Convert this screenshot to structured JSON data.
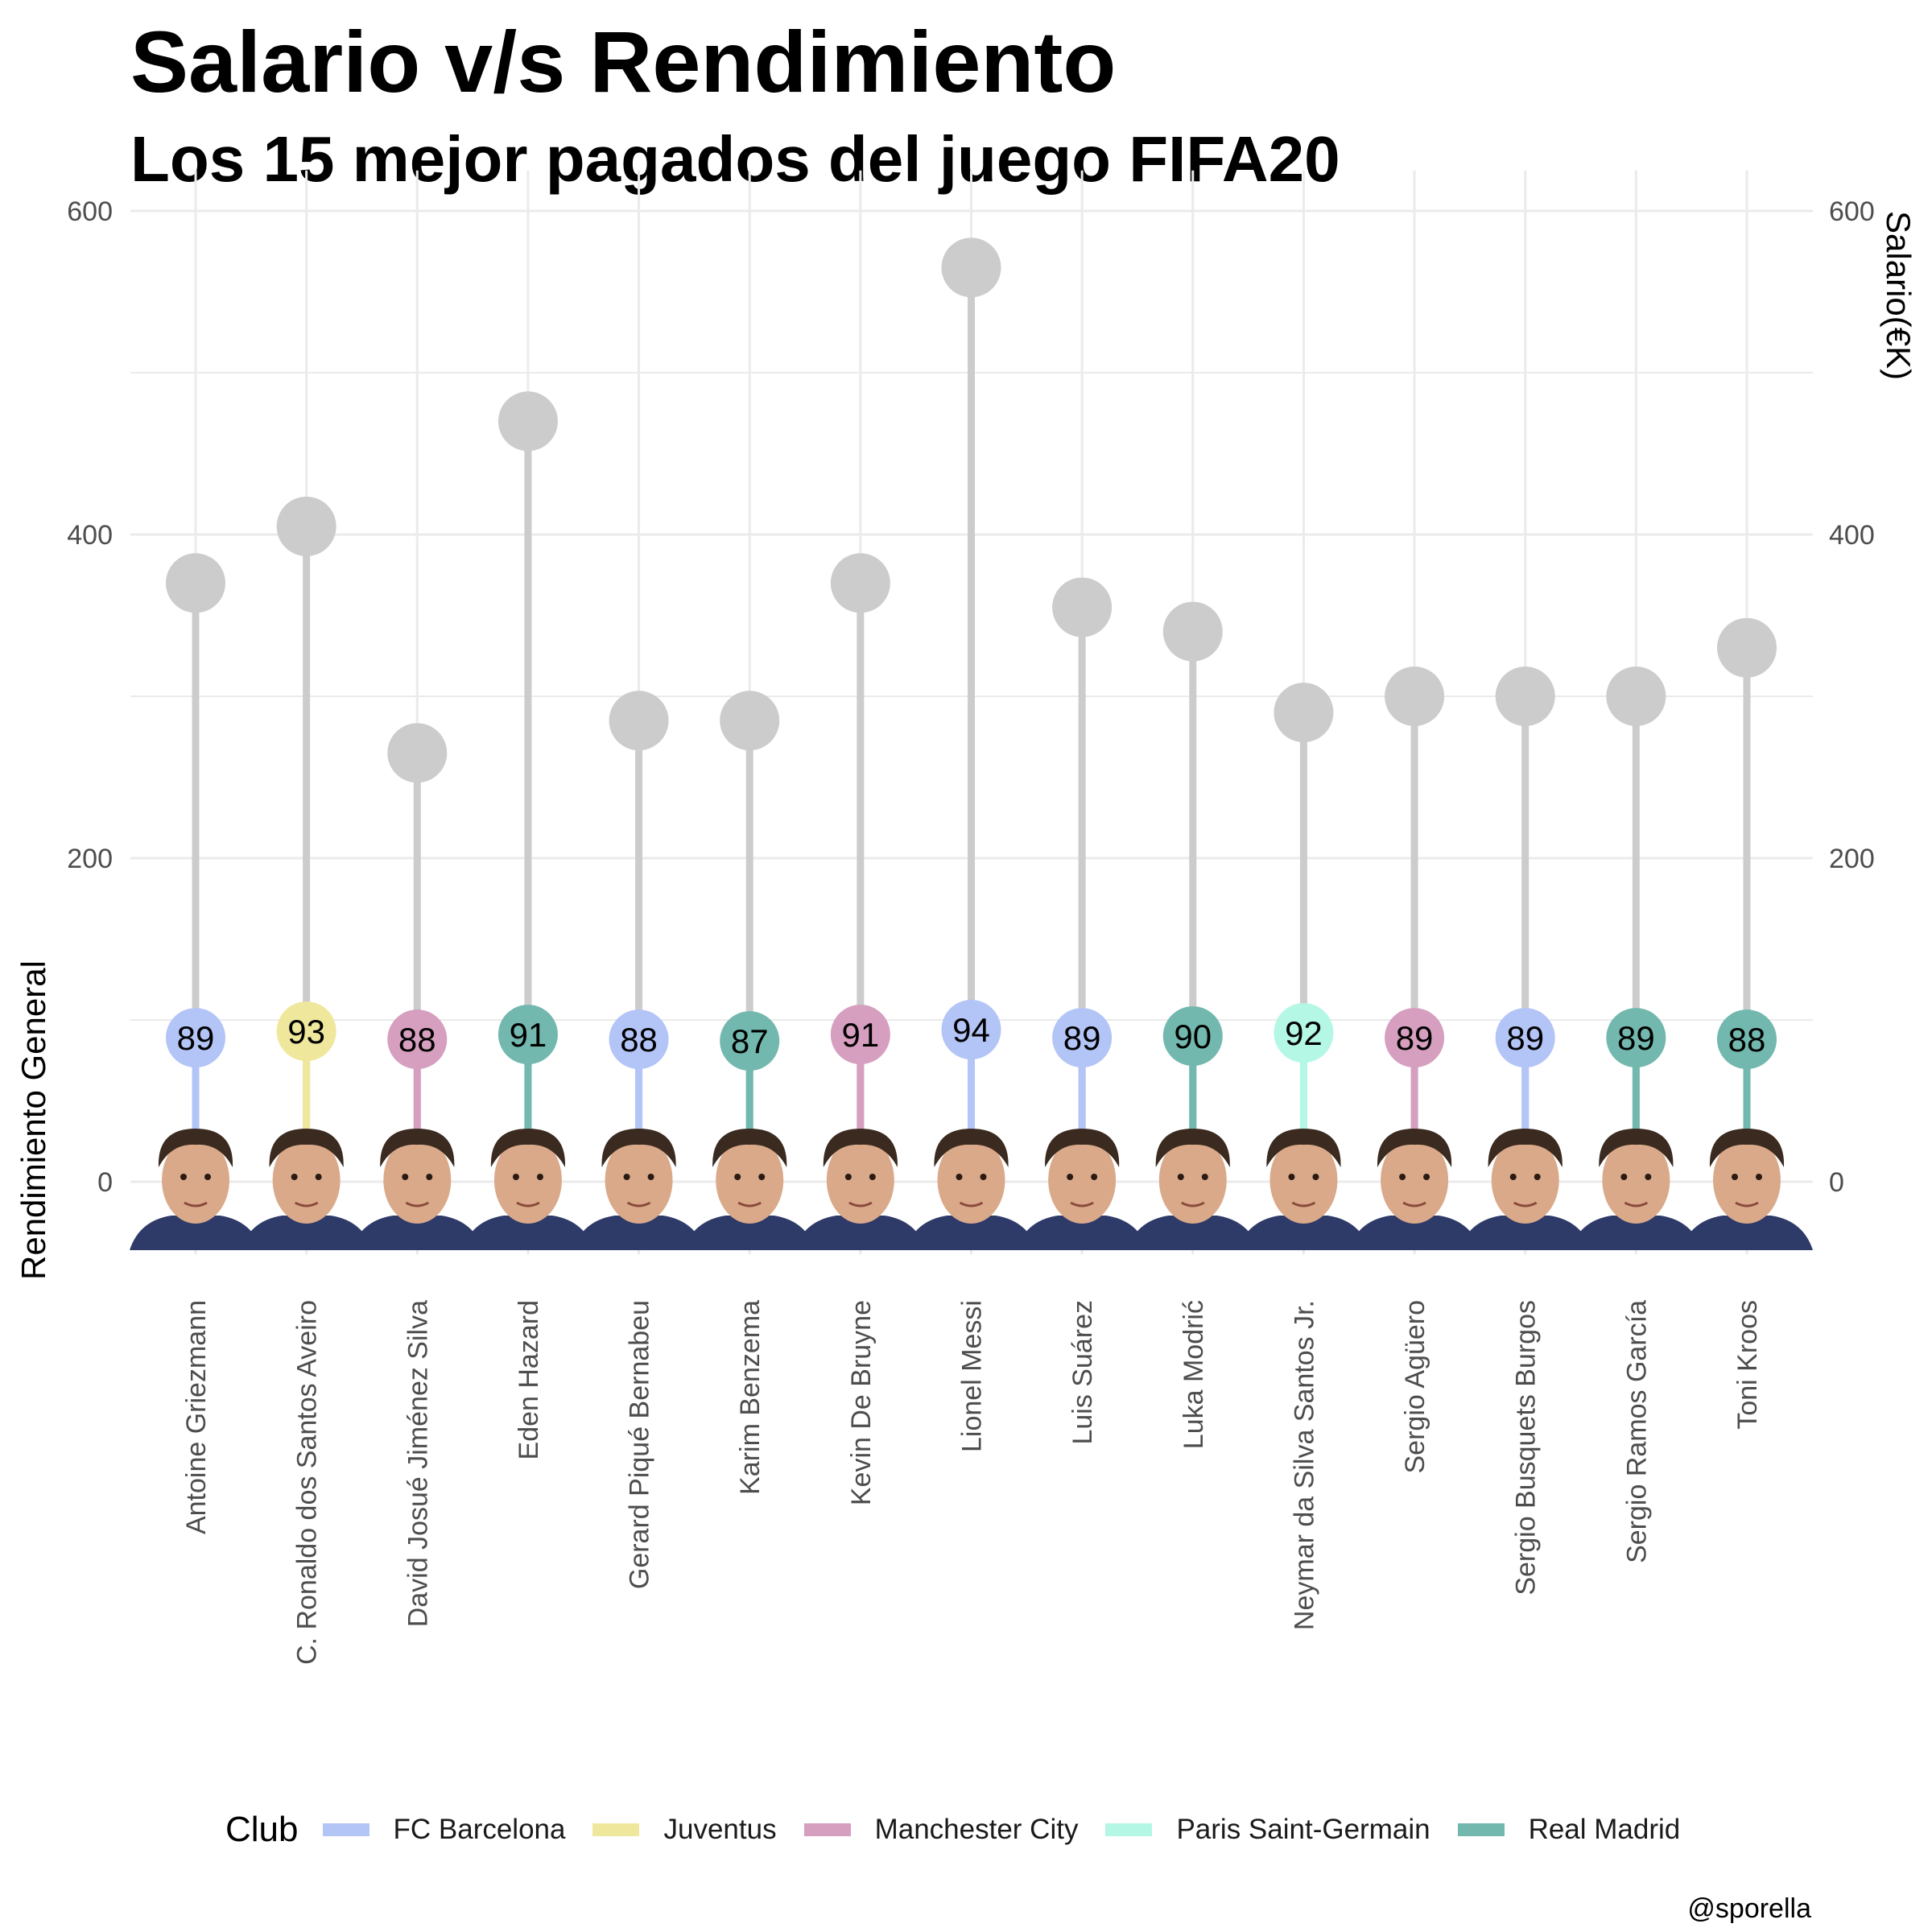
{
  "chart_data": {
    "type": "lollipop",
    "title": "Salario v/s Rendimiento",
    "subtitle": "Los 15 mejor pagados del juego FIFA20",
    "ylabel_left": "Rendimiento General",
    "ylabel_right": "Salario(€K)",
    "ylim": [
      -45,
      625
    ],
    "yticks": [
      0,
      200,
      400,
      600
    ],
    "grid": true,
    "legend": {
      "title": "Club",
      "position": "bottom",
      "items": [
        {
          "name": "FC Barcelona",
          "color": "#b3c4f7"
        },
        {
          "name": "Juventus",
          "color": "#efe89c"
        },
        {
          "name": "Manchester City",
          "color": "#d69ebf"
        },
        {
          "name": "Paris Saint-Germain",
          "color": "#b3f7e4"
        },
        {
          "name": "Real Madrid",
          "color": "#72b8ae"
        }
      ]
    },
    "players": [
      {
        "name": "Antoine Griezmann",
        "club": "FC Barcelona",
        "overall": 89,
        "salary": 370
      },
      {
        "name": "C. Ronaldo dos Santos Aveiro",
        "club": "Juventus",
        "overall": 93,
        "salary": 405
      },
      {
        "name": "David Josué Jiménez Silva",
        "club": "Manchester City",
        "overall": 88,
        "salary": 265
      },
      {
        "name": "Eden Hazard",
        "club": "Real Madrid",
        "overall": 91,
        "salary": 470
      },
      {
        "name": "Gerard Piqué Bernabeu",
        "club": "FC Barcelona",
        "overall": 88,
        "salary": 285
      },
      {
        "name": "Karim Benzema",
        "club": "Real Madrid",
        "overall": 87,
        "salary": 285
      },
      {
        "name": "Kevin De Bruyne",
        "club": "Manchester City",
        "overall": 91,
        "salary": 370
      },
      {
        "name": "Lionel Messi",
        "club": "FC Barcelona",
        "overall": 94,
        "salary": 565
      },
      {
        "name": "Luis Suárez",
        "club": "FC Barcelona",
        "overall": 89,
        "salary": 355
      },
      {
        "name": "Luka Modrić",
        "club": "Real Madrid",
        "overall": 90,
        "salary": 340
      },
      {
        "name": "Neymar da Silva Santos Jr.",
        "club": "Paris Saint-Germain",
        "overall": 92,
        "salary": 290
      },
      {
        "name": "Sergio Agüero",
        "club": "Manchester City",
        "overall": 89,
        "salary": 300
      },
      {
        "name": "Sergio Busquets Burgos",
        "club": "FC Barcelona",
        "overall": 89,
        "salary": 300
      },
      {
        "name": "Sergio Ramos García",
        "club": "Real Madrid",
        "overall": 89,
        "salary": 300
      },
      {
        "name": "Toni Kroos",
        "club": "Real Madrid",
        "overall": 88,
        "salary": 330
      }
    ],
    "salary_point_color": "#cccccc",
    "caption": "@sporella"
  }
}
